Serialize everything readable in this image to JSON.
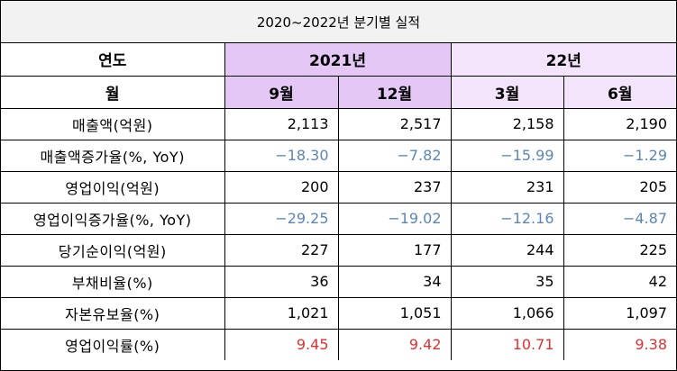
{
  "title": "2020~2022년 분기별 실적",
  "header": {
    "year_label": "연도",
    "month_label": "월",
    "year_2021": "2021년",
    "year_22": "22년",
    "months": [
      "9월",
      "12월",
      "3월",
      "6월"
    ]
  },
  "rows": [
    {
      "label": "매출액(억원)",
      "values": [
        "2,113",
        "2,517",
        "2,158",
        "2,190"
      ]
    },
    {
      "label": "매출액증가율(%, YoY)",
      "values": [
        "−18.30",
        "−7.82",
        "−15.99",
        "−1.29"
      ]
    },
    {
      "label": "영업이익(억원)",
      "values": [
        "200",
        "237",
        "231",
        "205"
      ]
    },
    {
      "label": "영업이익증가율(%, YoY)",
      "values": [
        "−29.25",
        "−19.02",
        "−12.16",
        "−4.87"
      ]
    },
    {
      "label": "당기순이익(억원)",
      "values": [
        "227",
        "177",
        "244",
        "225"
      ]
    },
    {
      "label": "부채비율(%)",
      "values": [
        "36",
        "34",
        "35",
        "42"
      ]
    },
    {
      "label": "자본유보율(%)",
      "values": [
        "1,021",
        "1,051",
        "1,066",
        "1,097"
      ]
    },
    {
      "label": "영업이익률(%)",
      "values": [
        "9.45",
        "9.42",
        "10.71",
        "9.38"
      ]
    }
  ],
  "colors": {
    "header_2021": "#e4c7f5",
    "header_22": "#f3e3fb",
    "negative_text": "#5b86b3",
    "highlight_text": "#e03131",
    "title_bg": "#f2f2f2"
  }
}
